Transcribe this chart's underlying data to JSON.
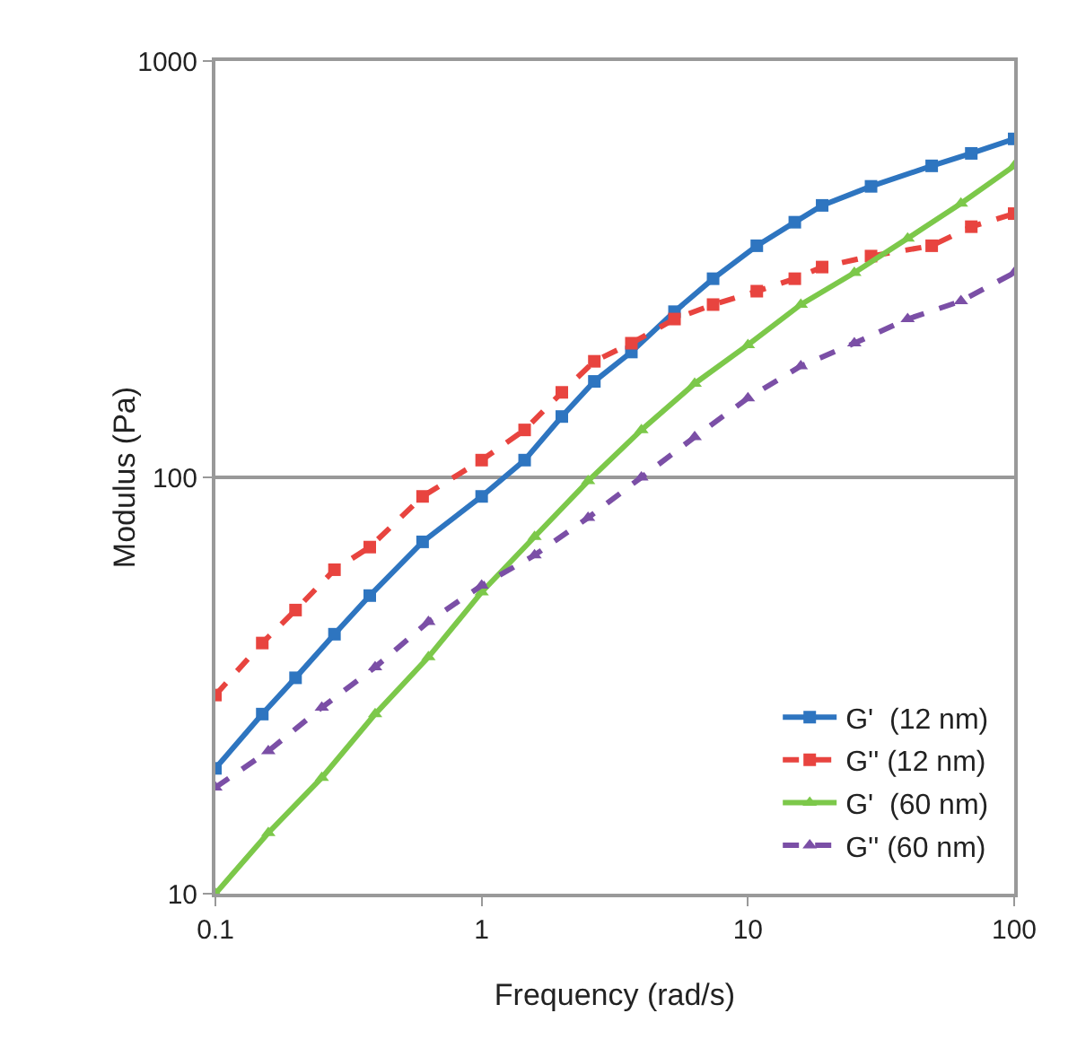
{
  "chart_data": {
    "type": "line",
    "xlabel": "Frequency (rad/s)",
    "ylabel": "Modulus (Pa)",
    "log": "xy",
    "xlim": [
      0.1,
      100
    ],
    "ylim": [
      10,
      1000
    ],
    "xticks": [
      0.1,
      1,
      10,
      100
    ],
    "yticks": [
      10,
      100,
      1000
    ],
    "grid": "y",
    "legend": "bottom right",
    "series": [
      {
        "name": "G'  (12 nm)",
        "color": "#2e75c0",
        "marker": "square",
        "line_style": "solid",
        "x": [
          0.1,
          0.15,
          0.2,
          0.28,
          0.38,
          0.6,
          1,
          1.45,
          2,
          2.65,
          3.65,
          5.3,
          7.4,
          10.8,
          15,
          19,
          29,
          49,
          69,
          100
        ],
        "values": [
          20,
          27,
          33,
          42,
          52,
          70,
          90,
          110,
          140,
          170,
          200,
          250,
          300,
          360,
          410,
          450,
          500,
          560,
          600,
          650
        ]
      },
      {
        "name": "G'' (12 nm)",
        "color": "#e8443f",
        "marker": "square",
        "line_style": "dashed",
        "x": [
          0.1,
          0.15,
          0.2,
          0.28,
          0.38,
          0.6,
          1,
          1.45,
          2,
          2.65,
          3.65,
          5.3,
          7.4,
          10.8,
          15,
          19,
          29,
          49,
          69,
          100
        ],
        "values": [
          30,
          40,
          48,
          60,
          68,
          90,
          110,
          130,
          160,
          190,
          210,
          240,
          260,
          280,
          300,
          320,
          340,
          360,
          400,
          430
        ]
      },
      {
        "name": "G'  (60 nm)",
        "color": "#7cc84a",
        "marker": "triangle",
        "line_style": "solid",
        "x": [
          0.1,
          0.158,
          0.251,
          0.398,
          0.631,
          1,
          1.58,
          2.51,
          3.98,
          6.31,
          10,
          15.8,
          25.1,
          39.8,
          63.1,
          100
        ],
        "values": [
          10,
          14,
          19,
          27,
          37,
          53,
          72,
          98,
          130,
          168,
          208,
          260,
          310,
          375,
          455,
          560
        ]
      },
      {
        "name": "G'' (60 nm)",
        "color": "#7b4fa6",
        "marker": "triangle",
        "line_style": "dashed",
        "x": [
          0.1,
          0.158,
          0.251,
          0.398,
          0.631,
          1,
          1.58,
          2.51,
          3.98,
          6.31,
          10,
          15.8,
          25.1,
          39.8,
          63.1,
          100
        ],
        "values": [
          18,
          22,
          28,
          35,
          45,
          55,
          65,
          80,
          100,
          125,
          155,
          185,
          210,
          240,
          265,
          310
        ]
      }
    ]
  }
}
